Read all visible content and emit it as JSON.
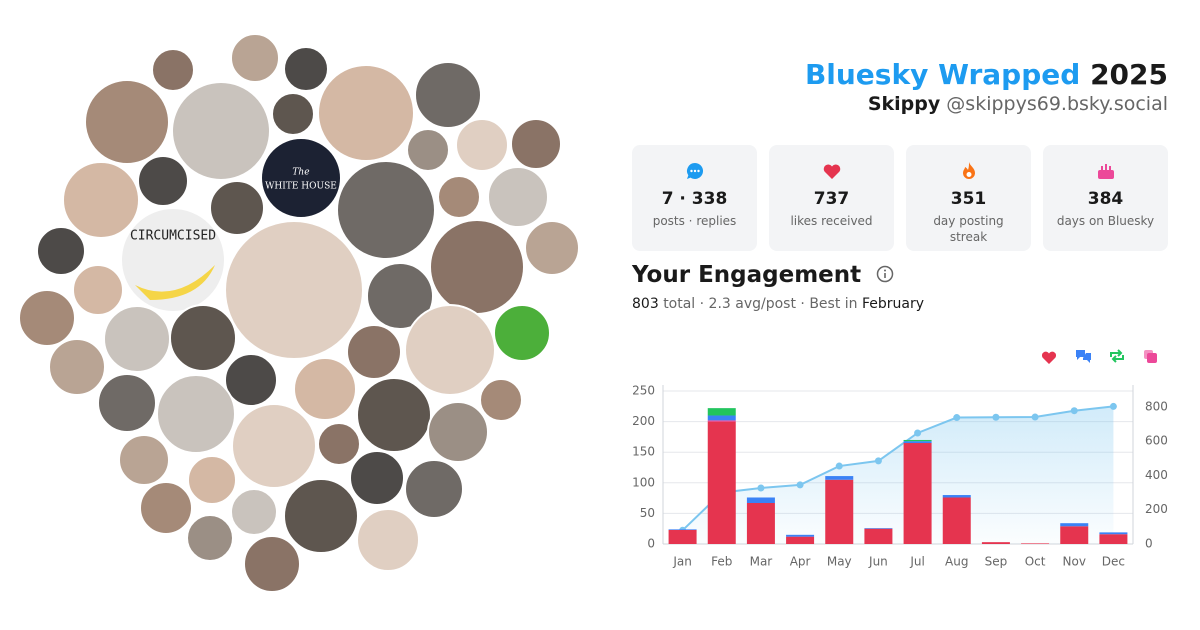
{
  "header": {
    "title": "Bluesky Wrapped",
    "year": "2025",
    "name": "Skippy",
    "handle": "@skippys69.bsky.social"
  },
  "collage_texts": [
    "CIRCUMCISED",
    "The",
    "WHITE HOUSE"
  ],
  "stats": [
    {
      "value": "7 · 338",
      "label": "posts · replies"
    },
    {
      "value": 737,
      "label": "likes received"
    },
    {
      "value": 351,
      "label": "day posting streak"
    },
    {
      "value": 384,
      "label": "days on Bluesky"
    }
  ],
  "engagement": {
    "title": "Your Engagement",
    "total": 803,
    "text": "total · 2.3 avg/post · Best in",
    "best": "February"
  },
  "chart_data": {
    "type": "bar",
    "categories": [
      "Jan",
      "Feb",
      "Mar",
      "Apr",
      "May",
      "Jun",
      "Jul",
      "Aug",
      "Sep",
      "Oct",
      "Nov",
      "Dec"
    ],
    "series": [
      {
        "color": "#e5344f",
        "values": [
          23,
          200,
          67,
          12,
          105,
          25,
          165,
          76,
          3,
          1,
          29,
          16
        ]
      },
      {
        "color": "#ec4899",
        "values": [
          0,
          2,
          0,
          0,
          0,
          0,
          0,
          0,
          0,
          0,
          0,
          0
        ]
      },
      {
        "color": "#3b82f6",
        "values": [
          1,
          8,
          9,
          3,
          6,
          1,
          3,
          4,
          0,
          0,
          5,
          3
        ]
      },
      {
        "color": "#22c55e",
        "values": [
          0,
          12,
          0,
          0,
          0,
          0,
          2,
          0,
          0,
          0,
          0,
          0
        ]
      },
      {
        "type": "line",
        "axis": "y2",
        "color": "#7cc6ef",
        "values": [
          80,
          300,
          327,
          345,
          455,
          485,
          648,
          738,
          740,
          741,
          778,
          803
        ]
      }
    ],
    "ylim": [
      0,
      250
    ],
    "yticks": [
      0,
      50,
      100,
      150,
      200,
      250
    ],
    "y2lim": [
      0,
      893
    ],
    "y2ticks": [
      0,
      200,
      400,
      600,
      800
    ],
    "grid": true
  }
}
